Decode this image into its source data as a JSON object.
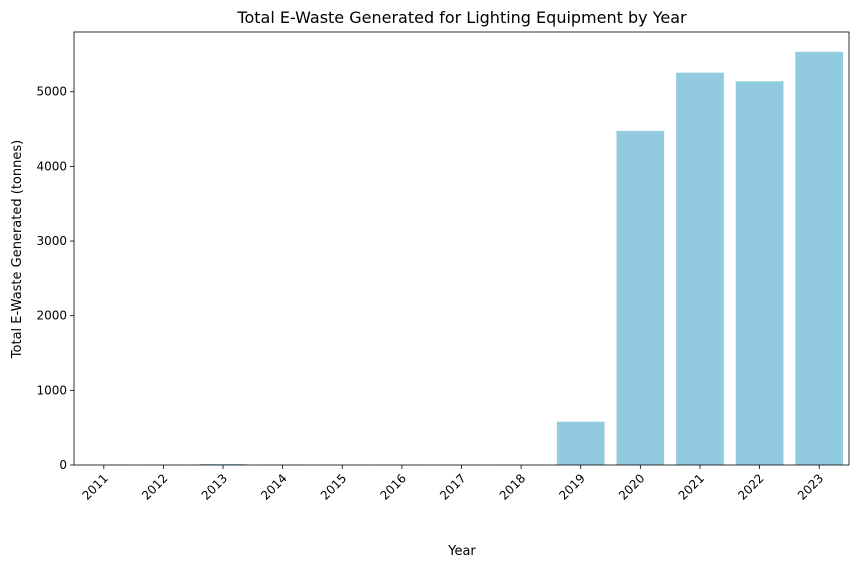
{
  "chart_data": {
    "type": "bar",
    "title": "Total E-Waste Generated for Lighting Equipment by Year",
    "xlabel": "Year",
    "ylabel": "Total E-Waste Generated (tonnes)",
    "categories": [
      "2011",
      "2012",
      "2013",
      "2014",
      "2015",
      "2016",
      "2017",
      "2018",
      "2019",
      "2020",
      "2021",
      "2022",
      "2023"
    ],
    "values": [
      2,
      1,
      12,
      2,
      1,
      1,
      1,
      1,
      580,
      4475,
      5255,
      5140,
      5535
    ],
    "ylim": [
      0,
      5800
    ],
    "yticks": [
      0,
      1000,
      2000,
      3000,
      4000,
      5000
    ],
    "bar_color": "#92cae0",
    "grid": false,
    "legend": false
  }
}
